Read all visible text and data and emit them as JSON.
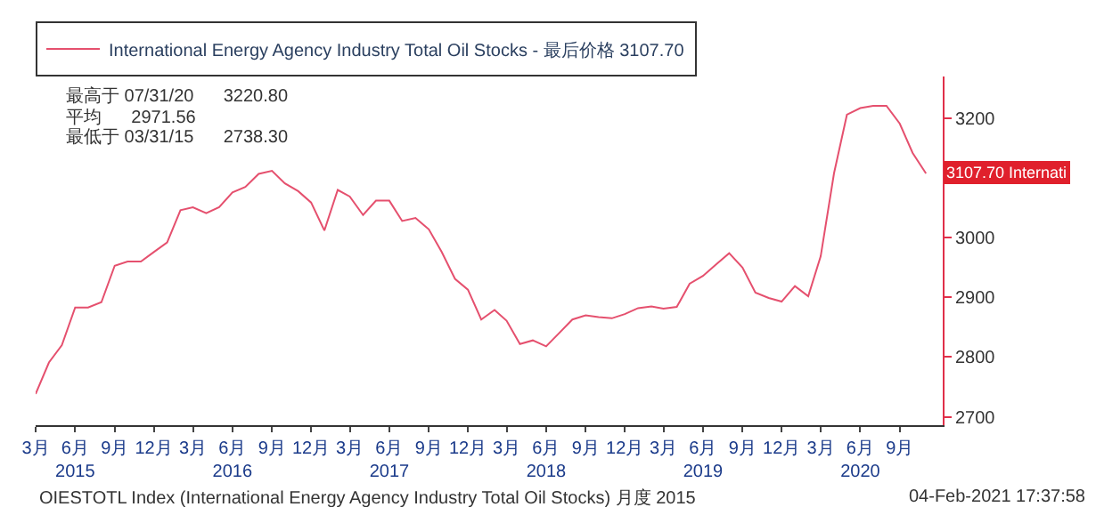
{
  "chart_data": {
    "type": "line",
    "x": [
      "2015-03",
      "2015-04",
      "2015-05",
      "2015-06",
      "2015-07",
      "2015-08",
      "2015-09",
      "2015-10",
      "2015-11",
      "2015-12",
      "2016-01",
      "2016-02",
      "2016-03",
      "2016-04",
      "2016-05",
      "2016-06",
      "2016-07",
      "2016-08",
      "2016-09",
      "2016-10",
      "2016-11",
      "2016-12",
      "2017-01",
      "2017-02",
      "2017-03",
      "2017-04",
      "2017-05",
      "2017-06",
      "2017-07",
      "2017-08",
      "2017-09",
      "2017-10",
      "2017-11",
      "2017-12",
      "2018-01",
      "2018-02",
      "2018-03",
      "2018-04",
      "2018-05",
      "2018-06",
      "2018-07",
      "2018-08",
      "2018-09",
      "2018-10",
      "2018-11",
      "2018-12",
      "2019-01",
      "2019-02",
      "2019-03",
      "2019-04",
      "2019-05",
      "2019-06",
      "2019-07",
      "2019-08",
      "2019-09",
      "2019-10",
      "2019-11",
      "2019-12",
      "2020-01",
      "2020-02",
      "2020-03",
      "2020-04",
      "2020-05",
      "2020-06",
      "2020-07",
      "2020-08",
      "2020-09",
      "2020-10",
      "2020-11"
    ],
    "series": [
      {
        "name": "International Energy Agency Industry Total Oil Stocks - 最后价格 3107.70",
        "color": "#e5506e",
        "values": [
          2738.3,
          2791,
          2820,
          2883,
          2883,
          2892,
          2953,
          2960,
          2960,
          2976,
          2992,
          3046,
          3051,
          3041,
          3051,
          3076,
          3085,
          3107,
          3112,
          3091,
          3078,
          3059,
          3012,
          3080,
          3069,
          3038,
          3062,
          3062,
          3028,
          3033,
          3014,
          2976,
          2931,
          2913,
          2863,
          2879,
          2861,
          2822,
          2828,
          2818,
          2840,
          2863,
          2870,
          2867,
          2865,
          2872,
          2882,
          2885,
          2881,
          2884,
          2923,
          2936,
          2955,
          2974,
          2950,
          2908,
          2899,
          2893,
          2919,
          2902,
          2969,
          3108,
          3206,
          3217,
          3220.8,
          3221,
          3191,
          3142,
          3107.7
        ]
      }
    ],
    "xlim": [
      "2015-03-01",
      "2020-12-10"
    ],
    "xticks": [
      {
        "value": "2015-03",
        "label": "3月"
      },
      {
        "value": "2015-06",
        "label": "6月\n2015"
      },
      {
        "value": "2015-09",
        "label": "9月"
      },
      {
        "value": "2015-12",
        "label": "12月"
      },
      {
        "value": "2016-03",
        "label": "3月"
      },
      {
        "value": "2016-06",
        "label": "6月\n2016"
      },
      {
        "value": "2016-09",
        "label": "9月"
      },
      {
        "value": "2016-12",
        "label": "12月"
      },
      {
        "value": "2017-03",
        "label": "3月"
      },
      {
        "value": "2017-06",
        "label": "6月\n2017"
      },
      {
        "value": "2017-09",
        "label": "9月"
      },
      {
        "value": "2017-12",
        "label": "12月"
      },
      {
        "value": "2018-03",
        "label": "3月"
      },
      {
        "value": "2018-06",
        "label": "6月\n2018"
      },
      {
        "value": "2018-09",
        "label": "9月"
      },
      {
        "value": "2018-12",
        "label": "12月"
      },
      {
        "value": "2019-03",
        "label": "3月"
      },
      {
        "value": "2019-06",
        "label": "6月\n2019"
      },
      {
        "value": "2019-09",
        "label": "9月"
      },
      {
        "value": "2019-12",
        "label": "12月"
      },
      {
        "value": "2020-03",
        "label": "3月"
      },
      {
        "value": "2020-06",
        "label": "6月\n2020"
      },
      {
        "value": "2020-09",
        "label": "9月"
      }
    ],
    "ylim": [
      2686,
      3270
    ],
    "yticks": [
      2700,
      2800,
      2900,
      3000,
      {
        "value": 3100,
        "label": null
      },
      3200
    ],
    "legend": "top left",
    "marker": "none",
    "line_style": "solid",
    "annotations": [
      "最高于 07/31/20      3220.80",
      "平均      2971.56",
      "最低于 03/31/15      2738.30",
      "OIESTOTL Index (International Energy Agency Industry Total Oil Stocks) 月度 2015",
      "04-Feb-2021 17:37:58",
      {
        "text": "3107.70 Internati",
        "x": "2020-11",
        "y": 3107.7
      }
    ]
  }
}
